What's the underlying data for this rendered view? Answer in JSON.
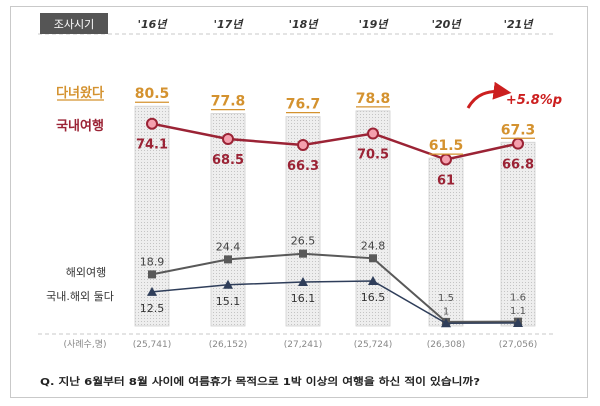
{
  "header": {
    "survey_period_label": "조사시기"
  },
  "years": [
    "'16년",
    "'17년",
    "'18년",
    "'19년",
    "'20년",
    "'21년"
  ],
  "sample_sizes": [
    "(25,741)",
    "(26,152)",
    "(27,241)",
    "(25,724)",
    "(26,308)",
    "(27,056)"
  ],
  "sample_label": "(사례수,명)",
  "change_badge": "+5.8%p",
  "question": "Q. 지난 6월부터 8월 사이에 여름휴가 목적으로 1박 이상의 여행을 하신 적이 있습니까?",
  "colors": {
    "traveled": "#d4922f",
    "domestic": "#9b2335",
    "overseas": "#595959",
    "both": "#2f3e5a",
    "arrow": "#cc1f1f"
  },
  "chart_data": {
    "type": "bar",
    "categories": [
      "'16년",
      "'17년",
      "'18년",
      "'19년",
      "'20년",
      "'21년"
    ],
    "series": [
      {
        "name": "다녀왔다",
        "type": "bar",
        "values": [
          80.5,
          77.8,
          76.7,
          78.8,
          61.5,
          67.3
        ]
      },
      {
        "name": "국내여행",
        "type": "line",
        "values": [
          74.1,
          68.5,
          66.3,
          70.5,
          61.0,
          66.8
        ]
      },
      {
        "name": "해외여행",
        "type": "line",
        "values": [
          18.9,
          24.4,
          26.5,
          24.8,
          1.5,
          1.6
        ]
      },
      {
        "name": "국내.해외 둘다",
        "type": "line",
        "values": [
          12.5,
          15.1,
          16.1,
          16.5,
          1.0,
          1.1
        ]
      }
    ],
    "ylim": [
      0,
      100
    ],
    "grid": false
  }
}
